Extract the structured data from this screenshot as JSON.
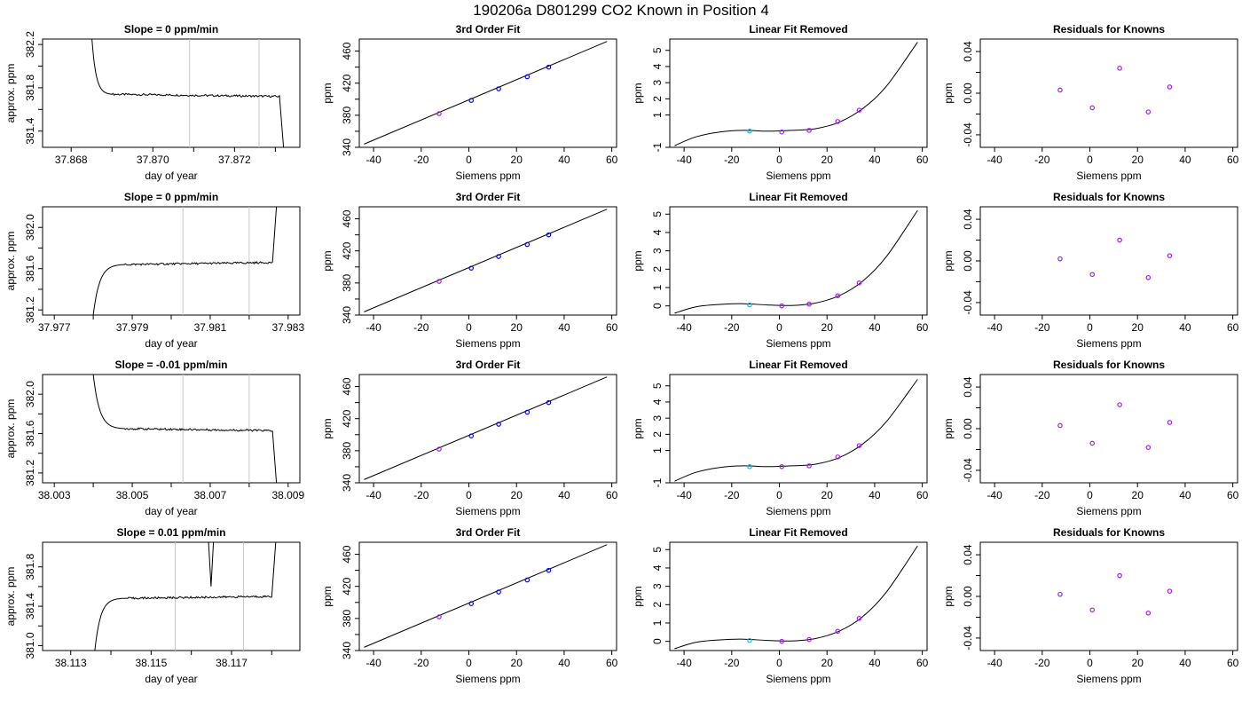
{
  "page_title": "190206a     D801299   CO2 Known in Position  4",
  "colors": {
    "axis": "#000000",
    "vline": "#c8c8c8",
    "point_main": "#0000ff",
    "point_alt": "#a020f0",
    "point_first": "#00bfff",
    "point_red": "#ff0000"
  },
  "chart_data": [
    {
      "type": "line",
      "title": "Slope =  0  ppm/min",
      "xlabel": "day of year",
      "ylabel": "approx. ppm",
      "xlim": [
        37.8673,
        37.8736
      ],
      "ylim": [
        381.25,
        382.25
      ],
      "xticks": [
        37.868,
        37.87,
        37.872
      ],
      "xtick_labels": [
        "37.868",
        "37.870",
        "37.872"
      ],
      "xminor": [
        37.869,
        37.871,
        37.873
      ],
      "yticks": [
        381.4,
        381.8,
        382.2
      ],
      "ytick_labels": [
        "381.4",
        "381.8",
        "382.2"
      ],
      "yminor": [
        381.6,
        382.0
      ],
      "vlines": [
        37.8709,
        37.8726
      ],
      "shape": {
        "x_start": 37.8685,
        "y_start": 382.3,
        "x_rise": 37.869,
        "y_plateau": 381.74,
        "x_end": 37.8731,
        "y_end_start": 381.72,
        "x_final": 37.8732,
        "y_final": 381.25,
        "end_dir": "down"
      }
    },
    {
      "type": "line",
      "title": "3rd Order Fit",
      "xlabel": "Siemens ppm",
      "ylabel": "ppm",
      "xlim": [
        -46,
        62
      ],
      "ylim": [
        340,
        475
      ],
      "xticks": [
        -40,
        -20,
        0,
        20,
        40,
        60
      ],
      "yticks": [
        340,
        380,
        420,
        460
      ],
      "yminor": [
        360,
        400,
        440
      ],
      "line": {
        "x": [
          -44,
          58
        ],
        "y": [
          344,
          472
        ]
      },
      "points": {
        "x": [
          -12.5,
          1,
          12.5,
          24.5,
          33.5
        ],
        "y": [
          382,
          398.5,
          413,
          428,
          440
        ],
        "colors": [
          "point_alt",
          "point_main",
          "point_main",
          "point_main",
          "point_main"
        ]
      }
    },
    {
      "type": "line",
      "title": "Linear Fit Removed",
      "xlabel": "Siemens ppm",
      "ylabel": "ppm",
      "xlim": [
        -46,
        62
      ],
      "ylim": [
        -1,
        5.7
      ],
      "xticks": [
        -40,
        -20,
        0,
        20,
        40,
        60
      ],
      "yticks": [
        -1,
        1,
        2,
        3,
        4,
        5
      ],
      "ytick_labels": [
        "-1",
        "1",
        "2",
        "3",
        "4",
        "5"
      ],
      "curve": {
        "x": [
          -44,
          -35,
          -25,
          -15,
          -5,
          5,
          15,
          25,
          35,
          45,
          58
        ],
        "y": [
          -0.9,
          -0.35,
          -0.05,
          0.05,
          0.0,
          0.05,
          0.15,
          0.55,
          1.4,
          2.8,
          5.5
        ]
      },
      "points": {
        "x": [
          -12.5,
          1,
          12.5,
          24.5,
          33.5
        ],
        "y": [
          0.0,
          -0.05,
          0.05,
          0.6,
          1.3
        ],
        "colors": [
          "point_first",
          "point_alt",
          "point_alt",
          "point_alt",
          "point_alt"
        ]
      }
    },
    {
      "type": "scatter",
      "title": "Residuals for Knowns",
      "xlabel": "Siemens ppm",
      "ylabel": "ppm",
      "xlim": [
        -46,
        62
      ],
      "ylim": [
        -0.052,
        0.052
      ],
      "xticks": [
        -40,
        -20,
        0,
        20,
        40,
        60
      ],
      "yticks": [
        -0.04,
        0.0,
        0.04
      ],
      "ytick_labels": [
        "-0.04",
        "0.00",
        "0.04"
      ],
      "yminor": [
        -0.02,
        0.02
      ],
      "points": {
        "x": [
          -12.5,
          1,
          12.5,
          24.5,
          33.5
        ],
        "y": [
          0.003,
          -0.014,
          0.024,
          -0.018,
          0.006
        ],
        "colors": [
          "point_alt",
          "point_alt",
          "point_alt",
          "point_alt",
          "point_alt"
        ]
      }
    },
    {
      "type": "line",
      "title": "Slope =  0  ppm/min",
      "xlabel": "day of year",
      "ylabel": "approx. ppm",
      "xlim": [
        37.9767,
        37.9833
      ],
      "ylim": [
        381.15,
        382.2
      ],
      "xticks": [
        37.977,
        37.979,
        37.981,
        37.983
      ],
      "xtick_labels": [
        "37.977",
        "37.979",
        "37.981",
        "37.983"
      ],
      "xminor": [
        37.978,
        37.98,
        37.982
      ],
      "yticks": [
        381.2,
        381.6,
        382.0
      ],
      "ytick_labels": [
        "381.2",
        "381.6",
        "382.0"
      ],
      "yminor": [
        381.4,
        381.8
      ],
      "vlines": [
        37.9803,
        37.982
      ],
      "shape": {
        "x_start": 37.978,
        "y_start": 381.15,
        "x_rise": 37.9788,
        "y_plateau": 381.64,
        "x_end": 37.9826,
        "y_end_start": 381.66,
        "x_final": 37.9827,
        "y_final": 382.2,
        "end_dir": "up"
      }
    },
    {
      "type": "line",
      "title": "3rd Order Fit",
      "xlabel": "Siemens ppm",
      "ylabel": "ppm",
      "xlim": [
        -46,
        62
      ],
      "ylim": [
        340,
        475
      ],
      "xticks": [
        -40,
        -20,
        0,
        20,
        40,
        60
      ],
      "yticks": [
        340,
        380,
        420,
        460
      ],
      "yminor": [
        360,
        400,
        440
      ],
      "line": {
        "x": [
          -44,
          58
        ],
        "y": [
          344,
          472
        ]
      },
      "points": {
        "x": [
          -12.5,
          1,
          12.5,
          24.5,
          33.5
        ],
        "y": [
          382,
          398.5,
          413,
          428,
          440
        ],
        "colors": [
          "point_alt",
          "point_main",
          "point_main",
          "point_main",
          "point_main"
        ]
      }
    },
    {
      "type": "line",
      "title": "Linear Fit Removed",
      "xlabel": "Siemens ppm",
      "ylabel": "ppm",
      "xlim": [
        -46,
        62
      ],
      "ylim": [
        -0.5,
        5.4
      ],
      "xticks": [
        -40,
        -20,
        0,
        20,
        40,
        60
      ],
      "yticks": [
        0,
        1,
        2,
        3,
        4,
        5
      ],
      "ytick_labels": [
        "0",
        "1",
        "2",
        "3",
        "4",
        "5"
      ],
      "curve": {
        "x": [
          -44,
          -35,
          -25,
          -15,
          -5,
          5,
          15,
          25,
          35,
          45,
          58
        ],
        "y": [
          -0.4,
          -0.05,
          0.08,
          0.12,
          0.05,
          0.02,
          0.15,
          0.55,
          1.35,
          2.7,
          5.2
        ]
      },
      "points": {
        "x": [
          -12.5,
          1,
          12.5,
          24.5,
          33.5
        ],
        "y": [
          0.05,
          0.0,
          0.1,
          0.55,
          1.25
        ],
        "colors": [
          "point_first",
          "point_alt",
          "point_alt",
          "point_alt",
          "point_alt"
        ]
      }
    },
    {
      "type": "scatter",
      "title": "Residuals for Knowns",
      "xlabel": "Siemens ppm",
      "ylabel": "ppm",
      "xlim": [
        -46,
        62
      ],
      "ylim": [
        -0.052,
        0.052
      ],
      "xticks": [
        -40,
        -20,
        0,
        20,
        40,
        60
      ],
      "yticks": [
        -0.04,
        0.0,
        0.04
      ],
      "ytick_labels": [
        "-0.04",
        "0.00",
        "0.04"
      ],
      "yminor": [
        -0.02,
        0.02
      ],
      "points": {
        "x": [
          -12.5,
          1,
          12.5,
          24.5,
          33.5
        ],
        "y": [
          0.002,
          -0.013,
          0.02,
          -0.016,
          0.005
        ],
        "colors": [
          "point_alt",
          "point_alt",
          "point_alt",
          "point_alt",
          "point_alt"
        ]
      }
    },
    {
      "type": "line",
      "title": "Slope =  -0.01  ppm/min",
      "xlabel": "day of year",
      "ylabel": "approx. ppm",
      "xlim": [
        38.0027,
        38.0093
      ],
      "ylim": [
        381.1,
        382.2
      ],
      "xticks": [
        38.003,
        38.005,
        38.007,
        38.009
      ],
      "xtick_labels": [
        "38.003",
        "38.005",
        "38.007",
        "38.009"
      ],
      "xminor": [
        38.004,
        38.006,
        38.008
      ],
      "yticks": [
        381.2,
        381.6,
        382.0
      ],
      "ytick_labels": [
        "381.2",
        "381.6",
        "382.0"
      ],
      "yminor": [
        381.4,
        381.8
      ],
      "vlines": [
        38.0063,
        38.008
      ],
      "shape": {
        "x_start": 38.004,
        "y_start": 382.2,
        "x_rise": 38.0048,
        "y_plateau": 381.65,
        "x_end": 38.0086,
        "y_end_start": 381.63,
        "x_final": 38.0087,
        "y_final": 381.1,
        "end_dir": "down"
      }
    },
    {
      "type": "line",
      "title": "3rd Order Fit",
      "xlabel": "Siemens ppm",
      "ylabel": "ppm",
      "xlim": [
        -46,
        62
      ],
      "ylim": [
        340,
        475
      ],
      "xticks": [
        -40,
        -20,
        0,
        20,
        40,
        60
      ],
      "yticks": [
        340,
        380,
        420,
        460
      ],
      "yminor": [
        360,
        400,
        440
      ],
      "line": {
        "x": [
          -44,
          58
        ],
        "y": [
          344,
          472
        ]
      },
      "points": {
        "x": [
          -12.5,
          1,
          12.5,
          24.5,
          33.5
        ],
        "y": [
          382,
          398.5,
          413,
          428,
          440
        ],
        "colors": [
          "point_alt",
          "point_main",
          "point_main",
          "point_main",
          "point_main"
        ]
      }
    },
    {
      "type": "line",
      "title": "Linear Fit Removed",
      "xlabel": "Siemens ppm",
      "ylabel": "ppm",
      "xlim": [
        -46,
        62
      ],
      "ylim": [
        -1,
        5.7
      ],
      "xticks": [
        -40,
        -20,
        0,
        20,
        40,
        60
      ],
      "yticks": [
        -1,
        1,
        2,
        3,
        4,
        5
      ],
      "ytick_labels": [
        "-1",
        "1",
        "2",
        "3",
        "4",
        "5"
      ],
      "curve": {
        "x": [
          -44,
          -35,
          -25,
          -15,
          -5,
          5,
          15,
          25,
          35,
          45,
          58
        ],
        "y": [
          -0.9,
          -0.35,
          -0.05,
          0.05,
          0.0,
          0.05,
          0.15,
          0.55,
          1.4,
          2.8,
          5.4
        ]
      },
      "points": {
        "x": [
          -12.5,
          1,
          12.5,
          24.5,
          33.5
        ],
        "y": [
          0.0,
          0.0,
          0.05,
          0.6,
          1.3
        ],
        "colors": [
          "point_first",
          "point_alt",
          "point_alt",
          "point_alt",
          "point_alt"
        ]
      }
    },
    {
      "type": "scatter",
      "title": "Residuals for Knowns",
      "xlabel": "Siemens ppm",
      "ylabel": "ppm",
      "xlim": [
        -46,
        62
      ],
      "ylim": [
        -0.052,
        0.052
      ],
      "xticks": [
        -40,
        -20,
        0,
        20,
        40,
        60
      ],
      "yticks": [
        -0.04,
        0.0,
        0.04
      ],
      "ytick_labels": [
        "-0.04",
        "0.00",
        "0.04"
      ],
      "yminor": [
        -0.02,
        0.02
      ],
      "points": {
        "x": [
          -12.5,
          1,
          12.5,
          24.5,
          33.5
        ],
        "y": [
          0.003,
          -0.014,
          0.023,
          -0.018,
          0.006
        ],
        "colors": [
          "point_alt",
          "point_alt",
          "point_alt",
          "point_alt",
          "point_alt"
        ]
      }
    },
    {
      "type": "line",
      "title": "Slope =  0.01  ppm/min",
      "xlabel": "day of year",
      "ylabel": "approx. ppm",
      "xlim": [
        38.1123,
        38.1187
      ],
      "ylim": [
        380.95,
        382.05
      ],
      "xticks": [
        38.113,
        38.115,
        38.117
      ],
      "xtick_labels": [
        "38.113",
        "38.115",
        "38.117"
      ],
      "xminor": [
        38.114,
        38.116,
        38.118
      ],
      "yticks": [
        381.0,
        381.4,
        381.8
      ],
      "ytick_labels": [
        "381.0",
        "381.4",
        "381.8"
      ],
      "yminor": [
        381.2,
        381.6
      ],
      "vlines": [
        38.1156,
        38.1173
      ],
      "spike": {
        "x": [
          38.11643,
          38.11649,
          38.11655
        ],
        "y": [
          382.05,
          381.6,
          382.05
        ]
      },
      "shape": {
        "x_start": 38.1136,
        "y_start": 380.95,
        "x_rise": 38.1143,
        "y_plateau": 381.48,
        "x_end": 38.118,
        "y_end_start": 381.5,
        "x_final": 38.1181,
        "y_final": 382.05,
        "end_dir": "up"
      }
    },
    {
      "type": "line",
      "title": "3rd Order Fit",
      "xlabel": "Siemens ppm",
      "ylabel": "ppm",
      "xlim": [
        -46,
        62
      ],
      "ylim": [
        340,
        475
      ],
      "xticks": [
        -40,
        -20,
        0,
        20,
        40,
        60
      ],
      "yticks": [
        340,
        380,
        420,
        460
      ],
      "yminor": [
        360,
        400,
        440
      ],
      "line": {
        "x": [
          -44,
          58
        ],
        "y": [
          344,
          472
        ]
      },
      "points": {
        "x": [
          -12.5,
          1,
          12.5,
          24.5,
          33.5
        ],
        "y": [
          382,
          398.5,
          413,
          428,
          440
        ],
        "colors": [
          "point_alt",
          "point_main",
          "point_main",
          "point_main",
          "point_main"
        ]
      }
    },
    {
      "type": "line",
      "title": "Linear Fit Removed",
      "xlabel": "Siemens ppm",
      "ylabel": "ppm",
      "xlim": [
        -46,
        62
      ],
      "ylim": [
        -0.5,
        5.4
      ],
      "xticks": [
        -40,
        -20,
        0,
        20,
        40,
        60
      ],
      "yticks": [
        0,
        1,
        2,
        3,
        4,
        5
      ],
      "ytick_labels": [
        "0",
        "1",
        "2",
        "3",
        "4",
        "5"
      ],
      "curve": {
        "x": [
          -44,
          -35,
          -25,
          -15,
          -5,
          5,
          15,
          25,
          35,
          45,
          58
        ],
        "y": [
          -0.4,
          -0.05,
          0.08,
          0.12,
          0.05,
          0.02,
          0.15,
          0.55,
          1.35,
          2.7,
          5.2
        ]
      },
      "points": {
        "x": [
          -12.5,
          1,
          12.5,
          24.5,
          33.5
        ],
        "y": [
          0.05,
          0.0,
          0.1,
          0.55,
          1.25
        ],
        "colors": [
          "point_first",
          "point_alt",
          "point_alt",
          "point_alt",
          "point_alt"
        ]
      }
    },
    {
      "type": "scatter",
      "title": "Residuals for Knowns",
      "xlabel": "Siemens ppm",
      "ylabel": "ppm",
      "xlim": [
        -46,
        62
      ],
      "ylim": [
        -0.052,
        0.052
      ],
      "xticks": [
        -40,
        -20,
        0,
        20,
        40,
        60
      ],
      "yticks": [
        -0.04,
        0.0,
        0.04
      ],
      "ytick_labels": [
        "-0.04",
        "0.00",
        "0.04"
      ],
      "yminor": [
        -0.02,
        0.02
      ],
      "points": {
        "x": [
          -12.5,
          1,
          12.5,
          24.5,
          33.5
        ],
        "y": [
          0.002,
          -0.013,
          0.02,
          -0.016,
          0.005
        ],
        "colors": [
          "point_alt",
          "point_alt",
          "point_alt",
          "point_alt",
          "point_alt"
        ]
      }
    }
  ]
}
